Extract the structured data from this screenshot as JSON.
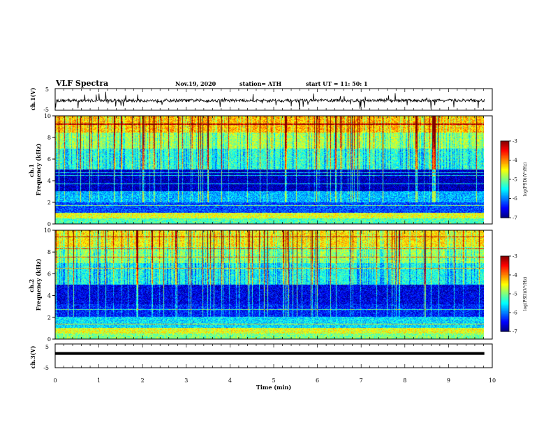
{
  "header": {
    "title": "VLF Spectra",
    "date": "Nov.19, 2020",
    "station": "station= ATH",
    "start_time": "start  UT  =   11: 50: 1"
  },
  "chart_data": [
    {
      "type": "line",
      "panel": "ch1-waveform",
      "ylabel": "ch.1(V)",
      "ylim": [
        -5,
        5
      ],
      "yticks": [
        "5",
        "-5"
      ],
      "xlim": [
        0,
        10
      ],
      "approx_level": -0.5,
      "style": "noisy black trace with frequent spikes"
    },
    {
      "type": "heatmap",
      "panel": "ch1-spectrogram",
      "ylabel": "ch.1\nFrequency (kHz)",
      "ylim": [
        0,
        10
      ],
      "yticks": [
        "0",
        "2",
        "4",
        "6",
        "8",
        "10"
      ],
      "xlim": [
        0,
        10
      ],
      "colorbar": {
        "label": "log(PSD)(V²/Hz)",
        "ticks": [
          "-3",
          "-4",
          "-5",
          "-6",
          "-7"
        ],
        "range": [
          -7,
          -3
        ]
      },
      "bands": [
        {
          "fmin": 0.0,
          "fmax": 0.5,
          "level": -5.2
        },
        {
          "fmin": 0.5,
          "fmax": 1.0,
          "level": -4.6
        },
        {
          "fmin": 1.0,
          "fmax": 2.0,
          "level": -6.2
        },
        {
          "fmin": 2.0,
          "fmax": 3.0,
          "level": -5.8
        },
        {
          "fmin": 3.0,
          "fmax": 5.0,
          "level": -6.8
        },
        {
          "fmin": 5.0,
          "fmax": 7.0,
          "level": -5.3
        },
        {
          "fmin": 7.0,
          "fmax": 8.5,
          "level": -4.8
        },
        {
          "fmin": 8.5,
          "fmax": 10.0,
          "level": -4.2
        }
      ]
    },
    {
      "type": "heatmap",
      "panel": "ch2-spectrogram",
      "ylabel": "ch.2\nFrequency (kHz)",
      "ylim": [
        0,
        10
      ],
      "yticks": [
        "0",
        "2",
        "4",
        "6",
        "8",
        "10"
      ],
      "xlim": [
        0,
        10
      ],
      "colorbar": {
        "label": "log(PSD)(V²/Hz)",
        "ticks": [
          "-3",
          "-4",
          "-5",
          "-6",
          "-7"
        ],
        "range": [
          -7,
          -3
        ]
      },
      "bands": [
        {
          "fmin": 0.0,
          "fmax": 0.5,
          "level": -5.0
        },
        {
          "fmin": 0.5,
          "fmax": 1.0,
          "level": -4.6
        },
        {
          "fmin": 1.0,
          "fmax": 2.0,
          "level": -5.6
        },
        {
          "fmin": 2.0,
          "fmax": 3.2,
          "level": -6.4
        },
        {
          "fmin": 3.2,
          "fmax": 5.0,
          "level": -6.6
        },
        {
          "fmin": 5.0,
          "fmax": 7.0,
          "level": -5.4
        },
        {
          "fmin": 7.0,
          "fmax": 8.5,
          "level": -4.9
        },
        {
          "fmin": 8.5,
          "fmax": 10.0,
          "level": -4.4
        }
      ]
    },
    {
      "type": "line",
      "panel": "ch3-waveform",
      "ylabel": "ch.3(V)",
      "ylim": [
        -5,
        5
      ],
      "yticks": [
        "5",
        "-5"
      ],
      "xlim": [
        0,
        10
      ],
      "approx_level": 1.0,
      "style": "thick black flat trace"
    }
  ],
  "xaxis": {
    "label": "Time  (min)",
    "ticks": [
      "0",
      "1",
      "2",
      "3",
      "4",
      "5",
      "6",
      "7",
      "8",
      "9",
      "10"
    ],
    "data_end": 9.82
  },
  "colors": {
    "axis": "#000000",
    "background": "#ffffff"
  }
}
